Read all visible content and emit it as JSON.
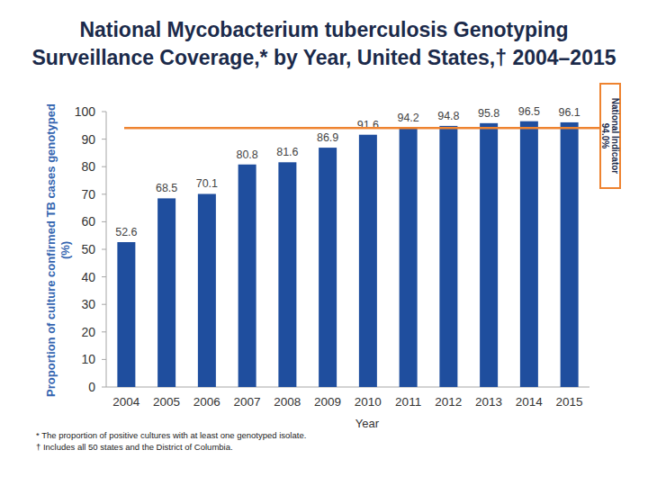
{
  "chart_data": {
    "type": "bar",
    "title": "National Mycobacterium tuberculosis Genotyping Surveillance Coverage,* by Year, United States,† 2004–2015",
    "x_label": "Year",
    "y_label": "Proportion of culture confirmed TB cases genotyped (%)",
    "categories": [
      "2004",
      "2005",
      "2006",
      "2007",
      "2008",
      "2009",
      "2010",
      "2011",
      "2012",
      "2013",
      "2014",
      "2015"
    ],
    "values": [
      52.6,
      68.5,
      70.1,
      80.8,
      81.6,
      86.9,
      91.6,
      94.2,
      94.8,
      95.8,
      96.5,
      96.1
    ],
    "color": "#1f4e9e",
    "ylim": [
      0,
      100
    ],
    "yticks": [
      0,
      10,
      20,
      30,
      40,
      50,
      60,
      70,
      80,
      90,
      100
    ],
    "grid": false,
    "data_labels": true,
    "reference_line": {
      "value": 94.0,
      "label": "National Indicator",
      "value_label": "94.0%"
    },
    "footnotes": [
      "* The proportion of positive cultures with at least one genotyped isolate.",
      "† Includes all 50 states and the District of Columbia."
    ]
  }
}
